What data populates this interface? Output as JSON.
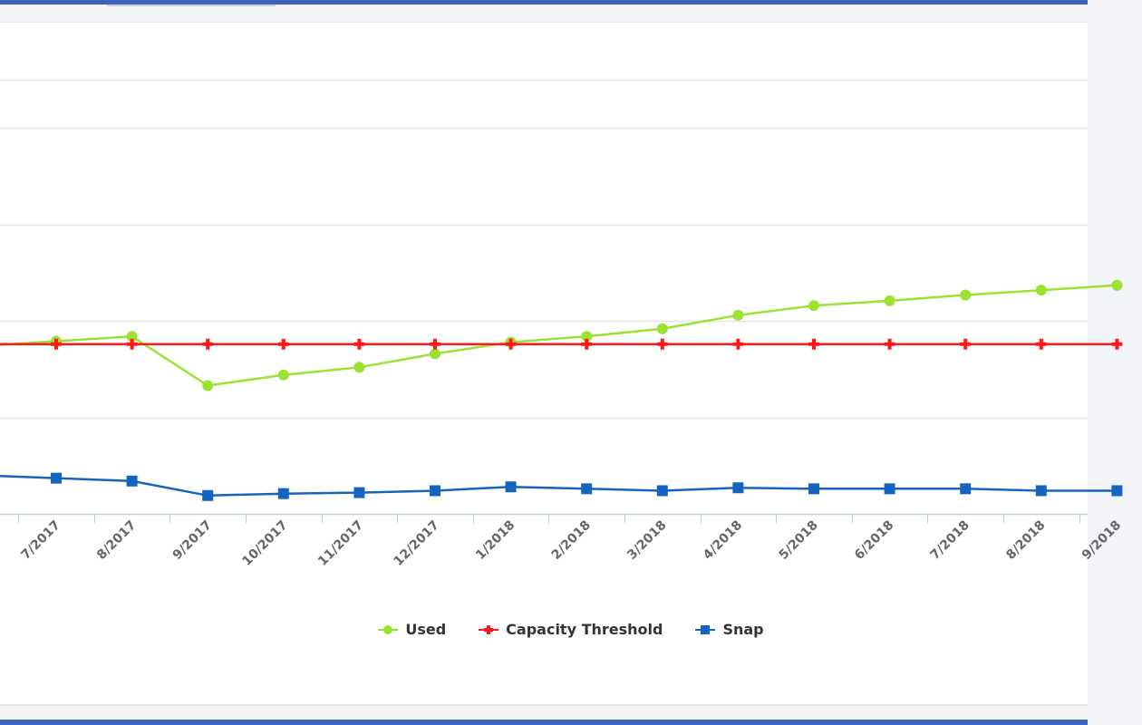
{
  "chart_data": {
    "type": "line",
    "categories": [
      "7/2017",
      "8/2017",
      "9/2017",
      "10/2017",
      "11/2017",
      "12/2017",
      "1/2018",
      "2/2018",
      "3/2018",
      "4/2018",
      "5/2018",
      "6/2018",
      "7/2018",
      "8/2018",
      "9/2018"
    ],
    "series": [
      {
        "name": "Used",
        "color": "#9be233",
        "marker": "circle",
        "values": [
          79.5,
          82,
          56.5,
          62,
          66,
          73,
          79,
          82,
          86,
          93,
          98,
          100.5,
          103.5,
          106,
          108.5
        ]
      },
      {
        "name": "Capacity Threshold",
        "color": "#ff1a1a",
        "marker": "plus",
        "values": [
          78,
          78,
          78,
          78,
          78,
          78,
          78,
          78,
          78,
          78,
          78,
          78,
          78,
          78,
          78
        ]
      },
      {
        "name": "Snap",
        "color": "#1565c0",
        "marker": "square",
        "values": [
          8.5,
          7,
          -0.5,
          0.5,
          1,
          2,
          4,
          3,
          2,
          3.5,
          3,
          3,
          3,
          2,
          2
        ]
      }
    ],
    "ylim": [
      -10,
      240
    ],
    "grid": true,
    "legend": "bottom",
    "title": "",
    "xlabel": "",
    "ylabel": ""
  }
}
